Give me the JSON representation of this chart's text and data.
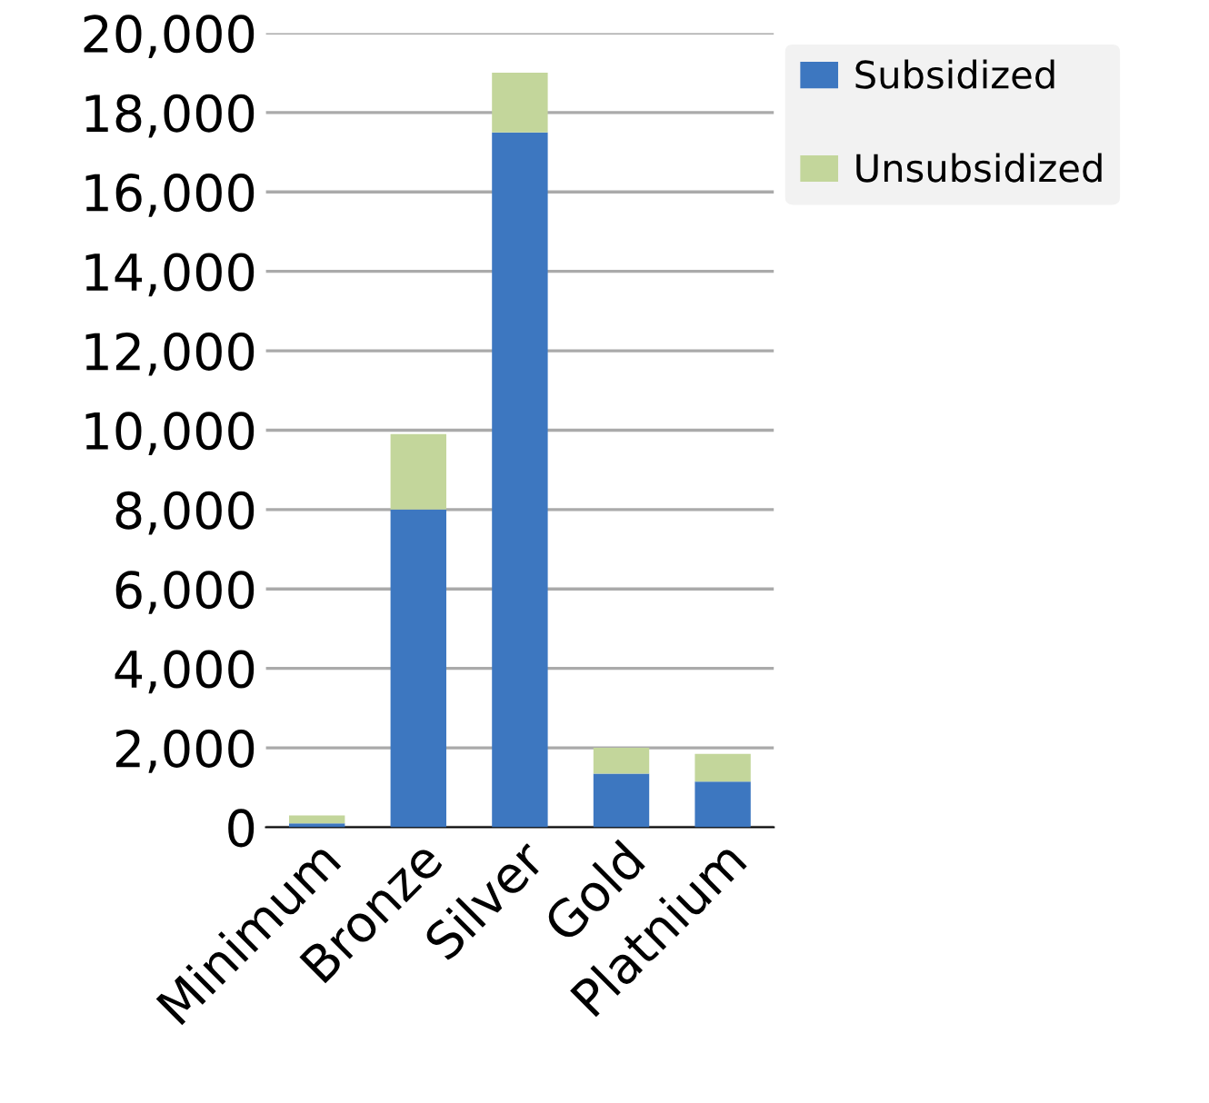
{
  "chart_data": {
    "type": "bar",
    "stacked": true,
    "categories": [
      "Minimum",
      "Bronze",
      "Silver",
      "Gold",
      "Platnium"
    ],
    "series": [
      {
        "name": "Subsidized",
        "color": "#3d77c0",
        "values": [
          100,
          8000,
          17500,
          1350,
          1150
        ]
      },
      {
        "name": "Unsubsidized",
        "color": "#c3d69b",
        "values": [
          200,
          1900,
          1500,
          650,
          700
        ]
      }
    ],
    "ylim": [
      0,
      20000
    ],
    "yticks": [
      {
        "value": 0,
        "label": "0"
      },
      {
        "value": 2000,
        "label": "2,000"
      },
      {
        "value": 4000,
        "label": "4,000"
      },
      {
        "value": 6000,
        "label": "6,000"
      },
      {
        "value": 8000,
        "label": "8,000"
      },
      {
        "value": 10000,
        "label": "10,000"
      },
      {
        "value": 12000,
        "label": "12,000"
      },
      {
        "value": 14000,
        "label": "14,000"
      },
      {
        "value": 16000,
        "label": "16,000"
      },
      {
        "value": 18000,
        "label": "18,000"
      },
      {
        "value": 20000,
        "label": "20,000"
      }
    ],
    "grid": "y",
    "legend": "top right"
  }
}
